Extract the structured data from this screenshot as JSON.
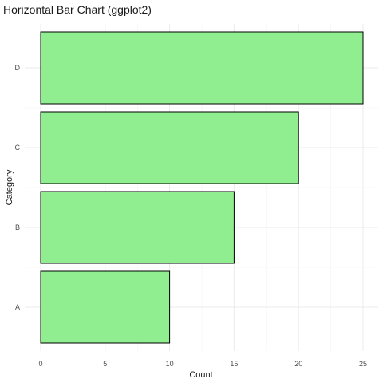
{
  "chart_data": {
    "type": "bar",
    "orientation": "horizontal",
    "title": "Horizontal Bar Chart (ggplot2)",
    "xlabel": "Count",
    "ylabel": "Category",
    "categories": [
      "A",
      "B",
      "C",
      "D"
    ],
    "values": [
      10,
      15,
      20,
      25
    ],
    "xlim": [
      0,
      25
    ],
    "xticks": [
      0,
      5,
      10,
      15,
      20,
      25
    ],
    "grid": true,
    "bar_color": "#90EE90",
    "bar_outline_color": "#000000"
  }
}
